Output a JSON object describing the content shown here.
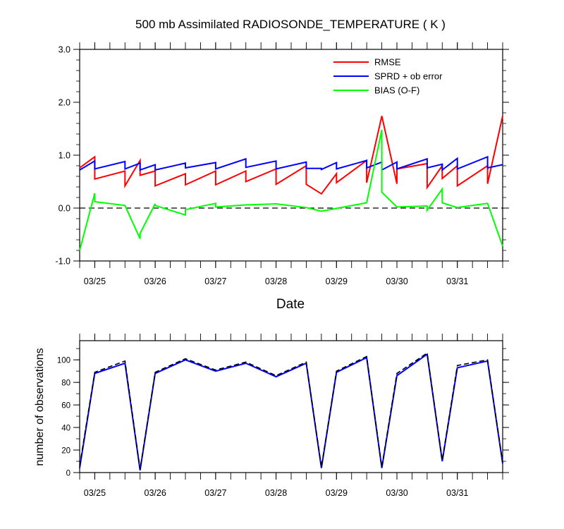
{
  "chart_data": [
    {
      "type": "line",
      "title": "500 mb Assimilated RADIOSONDE_TEMPERATURE ( K )",
      "xlabel": "Date",
      "ylabel": "",
      "xlim": [
        0,
        7.0
      ],
      "ylim": [
        -1.0,
        3.0
      ],
      "x_ticks": [
        {
          "x": 0.25,
          "label": "03/25"
        },
        {
          "x": 1.25,
          "label": "03/26"
        },
        {
          "x": 2.25,
          "label": "03/27"
        },
        {
          "x": 3.25,
          "label": "03/28"
        },
        {
          "x": 4.25,
          "label": "03/29"
        },
        {
          "x": 5.25,
          "label": "03/30"
        },
        {
          "x": 6.25,
          "label": "03/31"
        }
      ],
      "y_ticks": [
        {
          "v": -1.0,
          "label": "-1.0"
        },
        {
          "v": 0.0,
          "label": "0.0"
        },
        {
          "v": 1.0,
          "label": "1.0"
        },
        {
          "v": 2.0,
          "label": "2.0"
        },
        {
          "v": 3.0,
          "label": "3.0"
        }
      ],
      "reference_line": {
        "y": 0.0,
        "style": "dashed",
        "color": "#000000"
      },
      "legend": {
        "placement": "top-right"
      },
      "series": [
        {
          "name": "RMSE",
          "color": "#ff0000",
          "x": [
            0.0,
            0.25,
            0.25,
            0.75,
            0.75,
            1.0,
            1.0,
            1.25,
            1.25,
            1.75,
            1.75,
            2.25,
            2.25,
            2.75,
            2.75,
            3.25,
            3.25,
            3.75,
            3.75,
            4.0,
            4.25,
            4.25,
            4.75,
            4.75,
            5.0,
            5.25,
            5.25,
            5.75,
            5.75,
            6.0,
            6.0,
            6.25,
            6.25,
            6.75,
            6.75,
            7.0
          ],
          "y": [
            0.76,
            0.97,
            0.55,
            0.7,
            0.42,
            0.9,
            0.62,
            0.7,
            0.42,
            0.65,
            0.44,
            0.7,
            0.44,
            0.7,
            0.5,
            0.74,
            0.45,
            0.8,
            0.45,
            0.27,
            0.65,
            0.48,
            0.9,
            0.48,
            1.74,
            0.46,
            0.74,
            0.84,
            0.39,
            0.8,
            0.56,
            0.8,
            0.42,
            0.8,
            0.46,
            1.74
          ]
        },
        {
          "name": "SPRD + ob error",
          "color": "#0000ff",
          "x": [
            0.0,
            0.25,
            0.25,
            0.75,
            0.75,
            1.0,
            1.0,
            1.25,
            1.25,
            1.75,
            1.75,
            2.25,
            2.25,
            2.75,
            2.75,
            3.25,
            3.25,
            3.75,
            3.75,
            4.0,
            4.0,
            4.25,
            4.25,
            4.75,
            4.75,
            5.0,
            5.0,
            5.25,
            5.25,
            5.75,
            5.75,
            6.0,
            6.0,
            6.25,
            6.25,
            6.75,
            6.75,
            7.0
          ],
          "y": [
            0.72,
            0.89,
            0.74,
            0.88,
            0.74,
            0.85,
            0.72,
            0.82,
            0.72,
            0.85,
            0.76,
            0.86,
            0.74,
            0.93,
            0.77,
            0.89,
            0.74,
            0.87,
            0.75,
            0.75,
            0.73,
            0.86,
            0.74,
            0.9,
            0.76,
            0.87,
            0.72,
            0.87,
            0.74,
            0.93,
            0.76,
            0.83,
            0.72,
            0.94,
            0.74,
            0.97,
            0.76,
            0.82
          ]
        },
        {
          "name": "BIAS (O-F)",
          "color": "#00ff00",
          "x": [
            0.0,
            0.25,
            0.25,
            0.75,
            1.0,
            1.0,
            1.25,
            1.25,
            1.75,
            1.75,
            2.25,
            2.25,
            2.75,
            3.25,
            3.75,
            4.0,
            4.75,
            5.0,
            5.0,
            5.25,
            5.75,
            5.75,
            6.0,
            6.0,
            6.25,
            6.75,
            7.0
          ],
          "y": [
            -0.8,
            0.28,
            0.12,
            0.05,
            -0.58,
            -0.48,
            0.08,
            0.05,
            -0.13,
            -0.03,
            0.09,
            0.02,
            0.06,
            0.08,
            0.01,
            -0.06,
            0.1,
            1.48,
            0.3,
            0.02,
            0.04,
            -0.04,
            0.36,
            0.1,
            0.01,
            0.09,
            -0.72
          ]
        }
      ]
    },
    {
      "type": "line",
      "title": "",
      "xlabel": "",
      "ylabel": "number of observations",
      "xlim": [
        0,
        7.0
      ],
      "ylim": [
        0,
        117
      ],
      "x_ticks": [
        {
          "x": 0.25,
          "label": "03/25"
        },
        {
          "x": 1.25,
          "label": "03/26"
        },
        {
          "x": 2.25,
          "label": "03/27"
        },
        {
          "x": 3.25,
          "label": "03/28"
        },
        {
          "x": 4.25,
          "label": "03/29"
        },
        {
          "x": 5.25,
          "label": "03/30"
        },
        {
          "x": 6.25,
          "label": "03/31"
        }
      ],
      "y_ticks": [
        {
          "v": 0,
          "label": "0"
        },
        {
          "v": 20,
          "label": "20"
        },
        {
          "v": 40,
          "label": "40"
        },
        {
          "v": 60,
          "label": "60"
        },
        {
          "v": 80,
          "label": "80"
        },
        {
          "v": 100,
          "label": "100"
        }
      ],
      "series": [
        {
          "color": "#0000ff",
          "style": "solid",
          "x": [
            0.0,
            0.25,
            0.75,
            1.0,
            1.25,
            1.75,
            2.25,
            2.75,
            3.25,
            3.75,
            4.0,
            4.25,
            4.75,
            5.0,
            5.25,
            5.75,
            6.0,
            6.25,
            6.75,
            7.0
          ],
          "y": [
            4,
            88,
            97,
            2,
            88,
            100,
            90,
            97,
            85,
            97,
            4,
            89,
            102,
            4,
            86,
            105,
            10,
            93,
            99,
            8
          ]
        },
        {
          "color": "#000000",
          "style": "dashed",
          "x": [
            0.0,
            0.25,
            0.75,
            1.0,
            1.25,
            1.75,
            2.25,
            2.75,
            3.25,
            3.75,
            4.0,
            4.25,
            4.75,
            5.0,
            5.25,
            5.75,
            6.0,
            6.25,
            6.75,
            7.0
          ],
          "y": [
            6,
            89,
            99,
            3,
            89,
            101,
            91,
            98,
            86,
            98,
            5,
            90,
            103,
            5,
            88,
            106,
            11,
            95,
            100,
            9
          ]
        }
      ]
    }
  ]
}
